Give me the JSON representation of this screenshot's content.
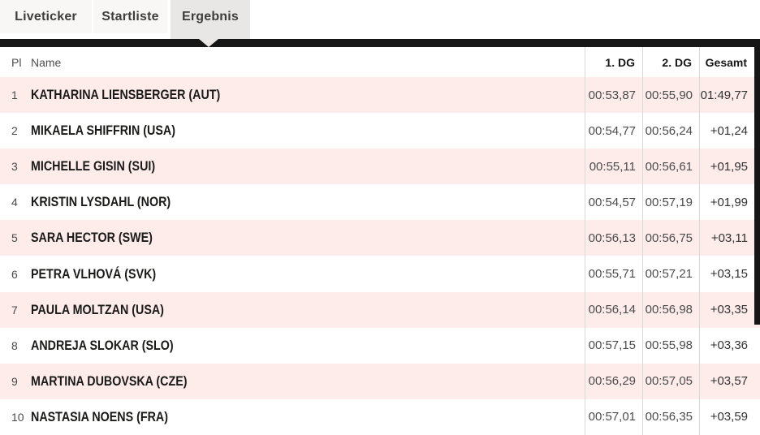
{
  "tabs": [
    {
      "label": "Liveticker",
      "active": false
    },
    {
      "label": "Startliste",
      "active": false
    },
    {
      "label": "Ergebnis",
      "active": true
    }
  ],
  "table": {
    "headers": {
      "pl": "Pl",
      "name": "Name",
      "dg1": "1. DG",
      "dg2": "2. DG",
      "total": "Gesamt"
    },
    "rows": [
      {
        "pl": "1",
        "name": "KATHARINA LIENSBERGER (AUT)",
        "dg1": "00:53,87",
        "dg2": "00:55,90",
        "total": "01:49,77"
      },
      {
        "pl": "2",
        "name": "MIKAELA SHIFFRIN (USA)",
        "dg1": "00:54,77",
        "dg2": "00:56,24",
        "total": "+01,24"
      },
      {
        "pl": "3",
        "name": "MICHELLE GISIN (SUI)",
        "dg1": "00:55,11",
        "dg2": "00:56,61",
        "total": "+01,95"
      },
      {
        "pl": "4",
        "name": "KRISTIN LYSDAHL (NOR)",
        "dg1": "00:54,57",
        "dg2": "00:57,19",
        "total": "+01,99"
      },
      {
        "pl": "5",
        "name": "SARA HECTOR (SWE)",
        "dg1": "00:56,13",
        "dg2": "00:56,75",
        "total": "+03,11"
      },
      {
        "pl": "6",
        "name": "PETRA VLHOVÁ (SVK)",
        "dg1": "00:55,71",
        "dg2": "00:57,21",
        "total": "+03,15"
      },
      {
        "pl": "7",
        "name": "PAULA MOLTZAN (USA)",
        "dg1": "00:56,14",
        "dg2": "00:56,98",
        "total": "+03,35"
      },
      {
        "pl": "8",
        "name": "ANDREJA SLOKAR (SLO)",
        "dg1": "00:57,15",
        "dg2": "00:55,98",
        "total": "+03,36"
      },
      {
        "pl": "9",
        "name": "MARTINA DUBOVSKA (CZE)",
        "dg1": "00:56,29",
        "dg2": "00:57,05",
        "total": "+03,57"
      },
      {
        "pl": "10",
        "name": "NASTASIA NOENS (FRA)",
        "dg1": "00:57,01",
        "dg2": "00:56,35",
        "total": "+03,59"
      }
    ]
  },
  "colors": {
    "row_alt_bg": "#fdecea",
    "bar_color": "#161616",
    "tab_active_bg": "#e9e7e5",
    "tab_inactive_bg": "#f8f7f5",
    "separator": "#d9d9d9",
    "name_text": "#1a1a18"
  }
}
